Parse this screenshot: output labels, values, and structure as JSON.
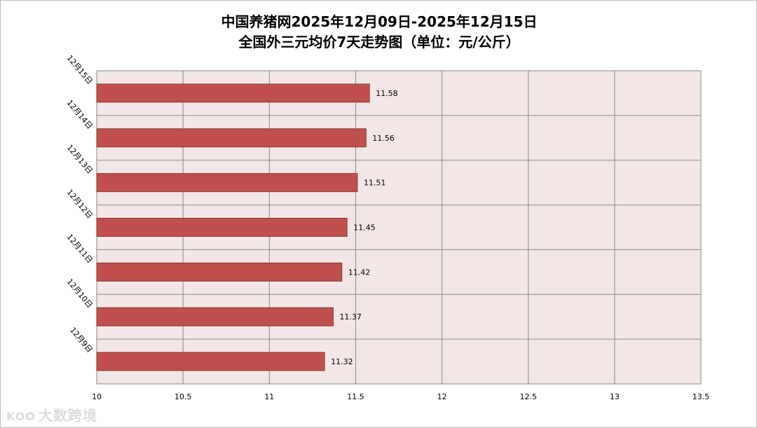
{
  "chart_data": {
    "type": "bar",
    "orientation": "horizontal",
    "title": [
      "中国养猪网2025年12月09日-2025年12月15日",
      "全国外三元均价7天走势图（单位：元/公斤）"
    ],
    "categories": [
      "12月15日",
      "12月14日",
      "12月13日",
      "12月12日",
      "12月11日",
      "12月10日",
      "12月9日"
    ],
    "values": [
      11.58,
      11.56,
      11.51,
      11.45,
      11.42,
      11.37,
      11.32
    ],
    "value_labels": [
      "11.58",
      "11.56",
      "11.51",
      "11.45",
      "11.42",
      "11.37",
      "11.32"
    ],
    "xlim": [
      10,
      13.5
    ],
    "xticks": [
      "10",
      "10.5",
      "11",
      "11.5",
      "12",
      "12.5",
      "13",
      "13.5"
    ],
    "grid": true,
    "legend": "none",
    "colors": {
      "bar_fill": "#c0504d",
      "bar_stroke": "#8c3836",
      "plot_bg": "#f2e6e6",
      "grid": "#8a8a8a"
    }
  },
  "watermark": {
    "logo": "KOO",
    "text": "大数跨境"
  }
}
